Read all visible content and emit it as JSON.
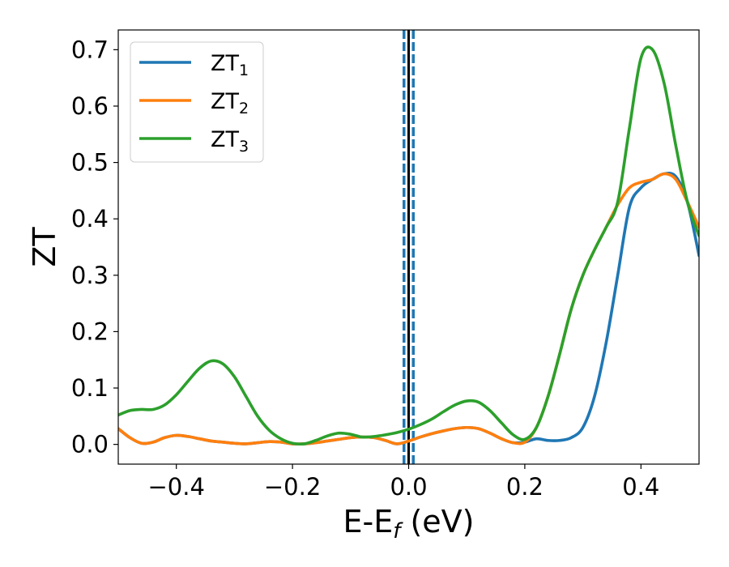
{
  "chart_data": {
    "type": "line",
    "xlabel": {
      "main": "E-E",
      "sub": "f",
      "tail": " (eV)"
    },
    "ylabel": "ZT",
    "xlim": [
      -0.5,
      0.5
    ],
    "ylim": [
      -0.035,
      0.735
    ],
    "xticks": [
      -0.4,
      -0.2,
      0.0,
      0.2,
      0.4
    ],
    "xtick_labels": [
      "−0.4",
      "−0.2",
      "0.0",
      "0.2",
      "0.4"
    ],
    "yticks": [
      0.0,
      0.1,
      0.2,
      0.3,
      0.4,
      0.5,
      0.6,
      0.7
    ],
    "ytick_labels": [
      "0.0",
      "0.1",
      "0.2",
      "0.3",
      "0.4",
      "0.5",
      "0.6",
      "0.7"
    ],
    "grid": false,
    "legend": {
      "position": "top-left"
    },
    "vertical_lines": [
      {
        "x": 0.0,
        "style": "solid",
        "color": "#000000"
      },
      {
        "x": -0.008,
        "style": "dashed",
        "color": "#1f77b4"
      },
      {
        "x": 0.008,
        "style": "dashed",
        "color": "#1f77b4"
      }
    ],
    "series": [
      {
        "name": "ZT",
        "name_sub": "1",
        "color": "#1f77b4",
        "x": [
          -0.5,
          -0.48,
          -0.46,
          -0.44,
          -0.42,
          -0.4,
          -0.38,
          -0.36,
          -0.34,
          -0.32,
          -0.3,
          -0.28,
          -0.26,
          -0.24,
          -0.22,
          -0.2,
          -0.18,
          -0.16,
          -0.14,
          -0.12,
          -0.1,
          -0.08,
          -0.06,
          -0.04,
          -0.02,
          0.0,
          0.02,
          0.04,
          0.06,
          0.08,
          0.1,
          0.12,
          0.14,
          0.16,
          0.18,
          0.2,
          0.22,
          0.24,
          0.26,
          0.28,
          0.3,
          0.32,
          0.34,
          0.36,
          0.38,
          0.4,
          0.42,
          0.44,
          0.46,
          0.48,
          0.5
        ],
        "y": [
          0.028,
          0.012,
          0.002,
          0.004,
          0.012,
          0.016,
          0.014,
          0.01,
          0.006,
          0.004,
          0.002,
          0.001,
          0.003,
          0.005,
          0.004,
          0.001,
          0.001,
          0.003,
          0.006,
          0.009,
          0.012,
          0.013,
          0.012,
          0.007,
          0.001,
          0.006,
          0.013,
          0.019,
          0.024,
          0.028,
          0.03,
          0.028,
          0.02,
          0.01,
          0.003,
          0.004,
          0.01,
          0.007,
          0.007,
          0.012,
          0.03,
          0.085,
          0.18,
          0.3,
          0.42,
          0.455,
          0.47,
          0.48,
          0.475,
          0.43,
          0.335
        ]
      },
      {
        "name": "ZT",
        "name_sub": "2",
        "color": "#ff7f0e",
        "x": [
          -0.5,
          -0.48,
          -0.46,
          -0.44,
          -0.42,
          -0.4,
          -0.38,
          -0.36,
          -0.34,
          -0.32,
          -0.3,
          -0.28,
          -0.26,
          -0.24,
          -0.22,
          -0.2,
          -0.18,
          -0.16,
          -0.14,
          -0.12,
          -0.1,
          -0.08,
          -0.06,
          -0.04,
          -0.02,
          0.0,
          0.02,
          0.04,
          0.06,
          0.08,
          0.1,
          0.12,
          0.14,
          0.16,
          0.18,
          0.2,
          0.22,
          0.24,
          0.26,
          0.28,
          0.3,
          0.32,
          0.34,
          0.36,
          0.38,
          0.4,
          0.42,
          0.44,
          0.46,
          0.48,
          0.5
        ],
        "y": [
          0.028,
          0.012,
          0.002,
          0.004,
          0.012,
          0.016,
          0.014,
          0.01,
          0.006,
          0.004,
          0.002,
          0.001,
          0.003,
          0.005,
          0.004,
          0.001,
          0.001,
          0.003,
          0.006,
          0.009,
          0.012,
          0.013,
          0.012,
          0.007,
          0.001,
          0.006,
          0.013,
          0.019,
          0.024,
          0.028,
          0.03,
          0.028,
          0.02,
          0.01,
          0.003,
          0.004,
          0.03,
          0.085,
          0.16,
          0.24,
          0.3,
          0.345,
          0.385,
          0.425,
          0.455,
          0.465,
          0.47,
          0.48,
          0.47,
          0.43,
          0.385
        ]
      },
      {
        "name": "ZT",
        "name_sub": "3",
        "color": "#2ca02c",
        "x": [
          -0.5,
          -0.48,
          -0.46,
          -0.44,
          -0.42,
          -0.4,
          -0.38,
          -0.36,
          -0.34,
          -0.32,
          -0.3,
          -0.28,
          -0.26,
          -0.24,
          -0.22,
          -0.2,
          -0.18,
          -0.16,
          -0.14,
          -0.12,
          -0.1,
          -0.08,
          -0.06,
          -0.04,
          -0.02,
          0.0,
          0.02,
          0.04,
          0.06,
          0.08,
          0.1,
          0.12,
          0.14,
          0.16,
          0.18,
          0.2,
          0.22,
          0.24,
          0.26,
          0.28,
          0.3,
          0.32,
          0.34,
          0.36,
          0.38,
          0.4,
          0.42,
          0.44,
          0.46,
          0.48,
          0.5
        ],
        "y": [
          0.052,
          0.06,
          0.062,
          0.062,
          0.07,
          0.088,
          0.112,
          0.135,
          0.148,
          0.143,
          0.12,
          0.085,
          0.05,
          0.025,
          0.01,
          0.002,
          0.001,
          0.007,
          0.015,
          0.02,
          0.018,
          0.013,
          0.014,
          0.017,
          0.021,
          0.027,
          0.035,
          0.045,
          0.058,
          0.07,
          0.077,
          0.075,
          0.06,
          0.038,
          0.017,
          0.009,
          0.03,
          0.085,
          0.16,
          0.24,
          0.3,
          0.345,
          0.385,
          0.43,
          0.56,
          0.685,
          0.7,
          0.64,
          0.53,
          0.43,
          0.37
        ]
      }
    ]
  }
}
